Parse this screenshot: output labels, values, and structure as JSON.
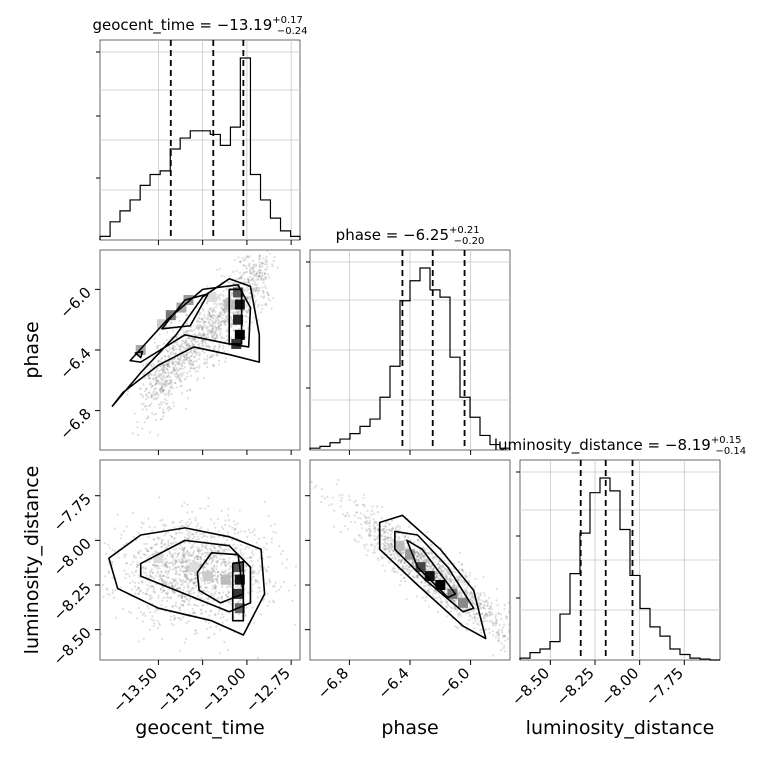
{
  "chart_data": {
    "type": "corner",
    "parameters": [
      "geocent_time",
      "phase",
      "luminosity_distance"
    ],
    "titles": [
      {
        "param": "geocent_time",
        "median": "−13.19",
        "plus": "+0.17",
        "minus": "−0.24",
        "prefix": "geocent_time = "
      },
      {
        "param": "phase",
        "median": "−6.25",
        "plus": "+0.21",
        "minus": "−0.20",
        "prefix": "phase = "
      },
      {
        "param": "luminosity_distance",
        "median": "−8.19",
        "plus": "+0.15",
        "minus": "−0.14",
        "prefix": "luminosity_distance = "
      }
    ],
    "axes": {
      "geocent_time": {
        "range": [
          -13.83,
          -12.7
        ],
        "ticks": [
          -13.5,
          -13.25,
          -13.0,
          -12.75
        ],
        "tick_labels": [
          "−13.50",
          "−13.25",
          "−13.00",
          "−12.75"
        ]
      },
      "phase": {
        "range": [
          -7.06,
          -5.74
        ],
        "ticks": [
          -6.8,
          -6.4,
          -6.0
        ],
        "tick_labels": [
          "−6.8",
          "−6.4",
          "−6.0"
        ]
      },
      "luminosity_distance": {
        "range": [
          -8.67,
          -7.55
        ],
        "ticks": [
          -8.5,
          -8.25,
          -8.0,
          -7.75
        ],
        "tick_labels": [
          "−8.50",
          "−8.25",
          "−8.00",
          "−7.75"
        ]
      }
    },
    "quantiles": {
      "geocent_time": [
        -13.43,
        -13.19,
        -13.02
      ],
      "phase": [
        -6.45,
        -6.25,
        -6.04
      ],
      "luminosity_distance": [
        -8.33,
        -8.19,
        -8.04
      ]
    },
    "histograms": {
      "geocent_time": {
        "bin_edges": [
          -13.83,
          -13.773,
          -13.717,
          -13.66,
          -13.603,
          -13.547,
          -13.49,
          -13.433,
          -13.377,
          -13.32,
          -13.263,
          -13.207,
          -13.15,
          -13.093,
          -13.037,
          -12.98,
          -12.923,
          -12.867,
          -12.81,
          -12.753,
          -12.7
        ],
        "counts": [
          0.02,
          0.1,
          0.16,
          0.22,
          0.3,
          0.36,
          0.38,
          0.5,
          0.56,
          0.6,
          0.6,
          0.58,
          0.52,
          0.62,
          1.0,
          0.36,
          0.22,
          0.12,
          0.05,
          0.02
        ]
      },
      "phase": {
        "bin_edges": [
          -7.06,
          -6.994,
          -6.928,
          -6.862,
          -6.796,
          -6.73,
          -6.664,
          -6.598,
          -6.532,
          -6.466,
          -6.4,
          -6.334,
          -6.268,
          -6.202,
          -6.136,
          -6.07,
          -6.004,
          -5.938,
          -5.872,
          -5.806,
          -5.74
        ],
        "counts": [
          0.01,
          0.02,
          0.04,
          0.06,
          0.09,
          0.13,
          0.17,
          0.29,
          0.46,
          0.82,
          0.93,
          1.0,
          0.88,
          0.84,
          0.51,
          0.29,
          0.18,
          0.08,
          0.03,
          0.01
        ]
      },
      "luminosity_distance": {
        "bin_edges": [
          -8.67,
          -8.614,
          -8.558,
          -8.502,
          -8.446,
          -8.39,
          -8.334,
          -8.278,
          -8.222,
          -8.166,
          -8.11,
          -8.054,
          -7.998,
          -7.942,
          -7.886,
          -7.83,
          -7.774,
          -7.718,
          -7.662,
          -7.606,
          -7.55
        ],
        "counts": [
          0.01,
          0.04,
          0.06,
          0.1,
          0.25,
          0.47,
          0.69,
          0.91,
          0.99,
          0.92,
          0.71,
          0.46,
          0.28,
          0.18,
          0.13,
          0.06,
          0.03,
          0.01,
          0.005,
          0.0
        ]
      }
    },
    "grid": true,
    "show_scatter": true,
    "contours": true
  }
}
